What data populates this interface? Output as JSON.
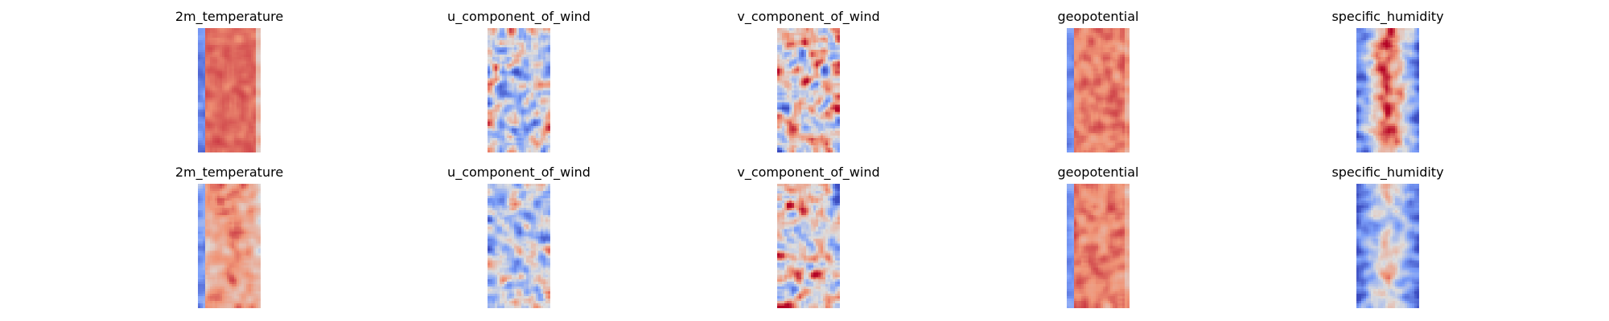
{
  "chart_data": {
    "type": "heatmap",
    "colormap": "coolwarm",
    "rows": 2,
    "cols": 5,
    "axes": "off",
    "panels": [
      {
        "row": 0,
        "col": 0,
        "title": "2m_temperature",
        "kind": "temp"
      },
      {
        "row": 0,
        "col": 1,
        "title": "u_component_of_wind",
        "kind": "uwind"
      },
      {
        "row": 0,
        "col": 2,
        "title": "v_component_of_wind",
        "kind": "vwind"
      },
      {
        "row": 0,
        "col": 3,
        "title": "geopotential",
        "kind": "geo"
      },
      {
        "row": 0,
        "col": 4,
        "title": "specific_humidity",
        "kind": "hum"
      },
      {
        "row": 1,
        "col": 0,
        "title": "2m_temperature",
        "kind": "temp2"
      },
      {
        "row": 1,
        "col": 1,
        "title": "u_component_of_wind",
        "kind": "uwind2"
      },
      {
        "row": 1,
        "col": 2,
        "title": "v_component_of_wind",
        "kind": "vwind"
      },
      {
        "row": 1,
        "col": 3,
        "title": "geopotential",
        "kind": "geo"
      },
      {
        "row": 1,
        "col": 4,
        "title": "specific_humidity",
        "kind": "hum2"
      }
    ]
  }
}
